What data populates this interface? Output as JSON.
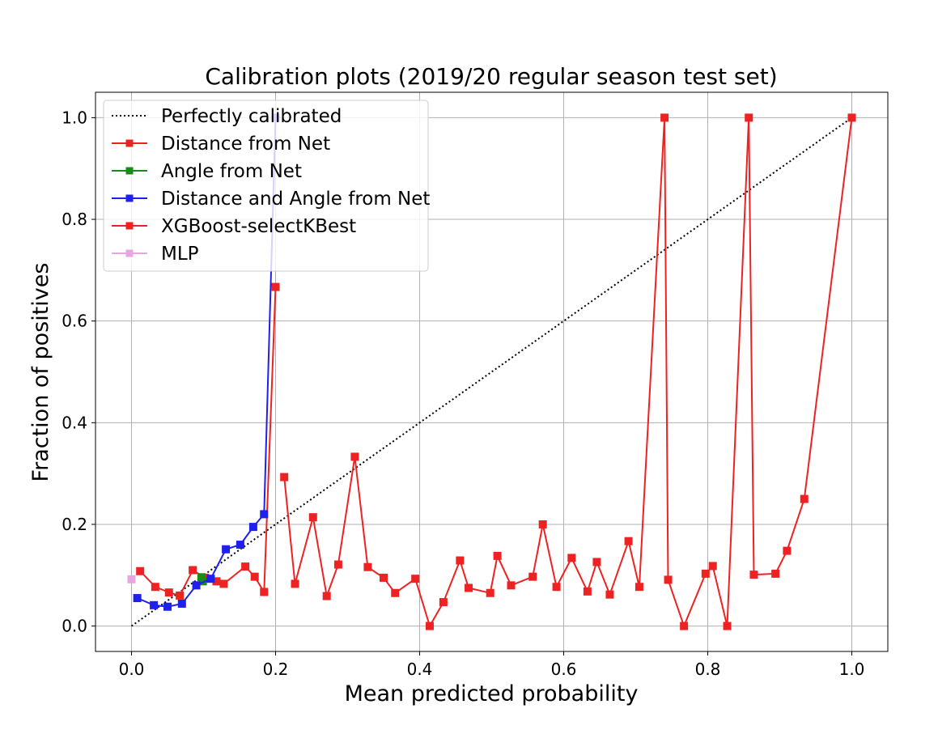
{
  "chart_data": {
    "type": "line",
    "title": "Calibration plots (2019/20 regular season test set)",
    "xlabel": "Mean predicted probability",
    "ylabel": "Fraction of positives",
    "xlim": [
      -0.05,
      1.05
    ],
    "ylim": [
      -0.05,
      1.05
    ],
    "x_ticks": [
      "0.0",
      "0.2",
      "0.4",
      "0.6",
      "0.8",
      "1.0"
    ],
    "y_ticks": [
      "0.0",
      "0.2",
      "0.4",
      "0.6",
      "0.8",
      "1.0"
    ],
    "grid": true,
    "legend_position": "top-left",
    "series": [
      {
        "name": "Perfectly calibrated",
        "color": "#000000",
        "style": "dotted",
        "marker": "none",
        "x": [
          0.0,
          1.0
        ],
        "y": [
          0.0,
          1.0
        ]
      },
      {
        "name": "Distance from Net",
        "color": "#ee2222",
        "style": "solid",
        "marker": "square",
        "x": [
          0.012,
          0.033,
          0.052,
          0.067,
          0.085,
          0.102,
          0.118,
          0.128,
          0.158,
          0.171,
          0.184,
          0.2
        ],
        "y": [
          0.108,
          0.077,
          0.066,
          0.06,
          0.11,
          0.095,
          0.088,
          0.083,
          0.117,
          0.097,
          0.067,
          0.667
        ]
      },
      {
        "name": "Angle from Net",
        "color": "#1a8a1a",
        "style": "solid",
        "marker": "square",
        "x": [
          0.097,
          0.099
        ],
        "y": [
          0.096,
          0.088
        ]
      },
      {
        "name": "Distance and Angle from Net",
        "color": "#1f1fee",
        "style": "solid",
        "marker": "square",
        "x": [
          0.008,
          0.031,
          0.05,
          0.07,
          0.09,
          0.11,
          0.131,
          0.151,
          0.169,
          0.184,
          0.2
        ],
        "y": [
          0.055,
          0.041,
          0.038,
          0.044,
          0.08,
          0.093,
          0.151,
          0.16,
          0.195,
          0.22,
          1.0
        ]
      },
      {
        "name": "XGBoost-selectKBest",
        "color": "#ee2222",
        "style": "solid",
        "marker": "square",
        "x": [
          0.212,
          0.227,
          0.252,
          0.271,
          0.287,
          0.31,
          0.328,
          0.35,
          0.366,
          0.394,
          0.414,
          0.433,
          0.456,
          0.468,
          0.498,
          0.508,
          0.527,
          0.557,
          0.571,
          0.59,
          0.611,
          0.633,
          0.646,
          0.664,
          0.69,
          0.705,
          0.74,
          0.745,
          0.767,
          0.797,
          0.807,
          0.827,
          0.857,
          0.864,
          0.894,
          0.91,
          0.934,
          1.0
        ],
        "y": [
          0.293,
          0.083,
          0.214,
          0.059,
          0.121,
          0.333,
          0.116,
          0.095,
          0.065,
          0.093,
          0.0,
          0.047,
          0.129,
          0.075,
          0.065,
          0.138,
          0.08,
          0.097,
          0.2,
          0.077,
          0.134,
          0.068,
          0.126,
          0.062,
          0.167,
          0.077,
          1.0,
          0.091,
          0.0,
          0.103,
          0.118,
          0.0,
          1.0,
          0.101,
          0.103,
          0.148,
          0.25,
          1.0
        ]
      },
      {
        "name": "MLP",
        "color": "#e8a6e0",
        "style": "solid",
        "marker": "square",
        "x": [
          0.0
        ],
        "y": [
          0.092
        ]
      }
    ]
  }
}
